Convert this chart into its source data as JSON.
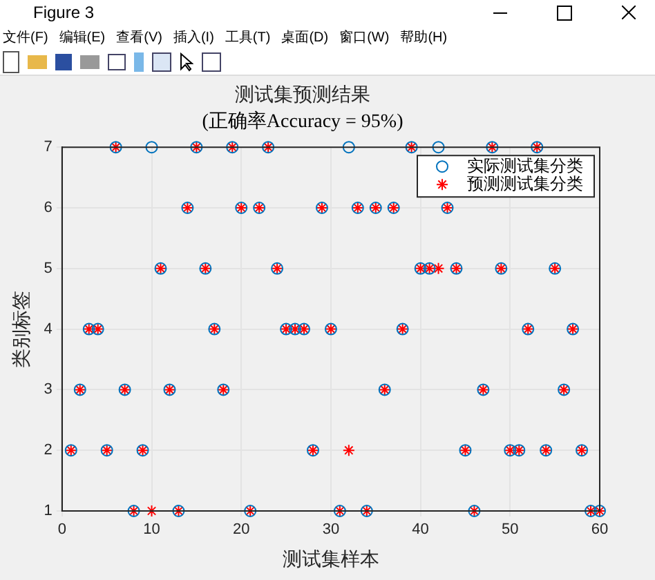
{
  "chart_data": {
    "type": "scatter",
    "title": "测试集预测结果",
    "subtitle": "(正确率Accuracy = 95%)",
    "xlabel": "测试集样本",
    "ylabel": "类别标签",
    "annotations": [
      "Figure 3",
      "文件(F)",
      "编辑(E)",
      "查看(V)",
      "插入(I)",
      "工具(T)",
      "桌面(D)",
      "窗口(W)",
      "帮助(H)"
    ],
    "x": [
      1,
      2,
      3,
      4,
      5,
      6,
      7,
      8,
      9,
      10,
      11,
      12,
      13,
      14,
      15,
      16,
      17,
      18,
      19,
      20,
      21,
      22,
      23,
      24,
      25,
      26,
      27,
      28,
      29,
      30,
      31,
      32,
      33,
      34,
      35,
      36,
      37,
      38,
      39,
      40,
      41,
      42,
      43,
      44,
      45,
      46,
      47,
      48,
      49,
      50,
      51,
      52,
      53,
      54,
      55,
      56,
      57,
      58,
      59,
      60
    ],
    "series": [
      {
        "name": "实际测试集分类",
        "color": "#0072bd",
        "marker": "circle",
        "values": [
          2,
          3,
          4,
          4,
          2,
          7,
          3,
          1,
          2,
          7,
          5,
          3,
          1,
          6,
          7,
          5,
          4,
          3,
          7,
          6,
          1,
          6,
          7,
          5,
          4,
          4,
          4,
          2,
          6,
          4,
          1,
          7,
          6,
          1,
          6,
          3,
          6,
          4,
          7,
          5,
          5,
          7,
          6,
          5,
          2,
          1,
          3,
          7,
          5,
          2,
          2,
          4,
          7,
          2,
          5,
          3,
          4,
          2,
          1,
          1
        ]
      },
      {
        "name": "预测测试集分类",
        "color": "#ff0000",
        "marker": "cross",
        "values": [
          2,
          3,
          4,
          4,
          2,
          7,
          3,
          1,
          2,
          1,
          5,
          3,
          1,
          6,
          7,
          5,
          4,
          3,
          7,
          6,
          1,
          6,
          7,
          5,
          4,
          4,
          4,
          2,
          6,
          4,
          1,
          2,
          6,
          1,
          6,
          3,
          6,
          4,
          7,
          5,
          5,
          5,
          6,
          5,
          2,
          1,
          3,
          7,
          5,
          2,
          2,
          4,
          7,
          2,
          5,
          3,
          4,
          2,
          1,
          1
        ]
      }
    ],
    "xlim": [
      0,
      60
    ],
    "xticks": [
      0,
      10,
      20,
      30,
      40,
      50,
      60
    ],
    "ylim": [
      1,
      7
    ],
    "yticks": [
      1,
      2,
      3,
      4,
      5,
      6,
      7
    ],
    "grid": true,
    "legend": "top right"
  }
}
